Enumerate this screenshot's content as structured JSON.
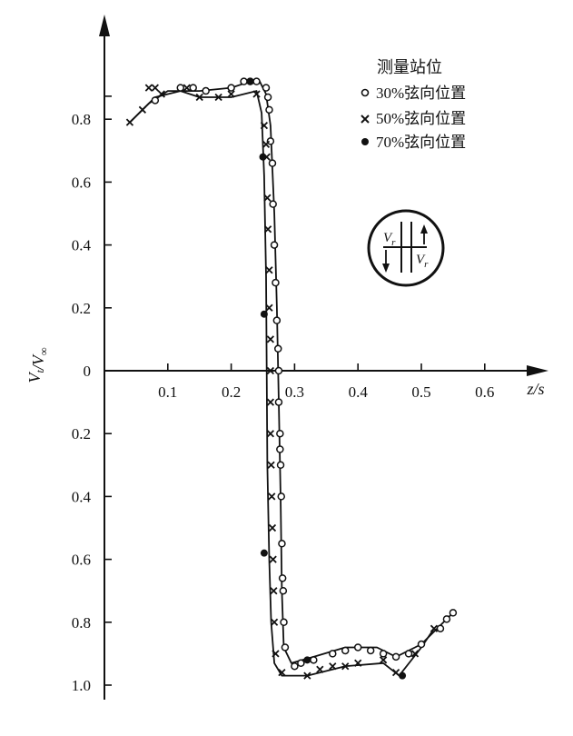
{
  "chart_data": {
    "type": "scatter",
    "title": "",
    "xlabel": "z/s",
    "ylabel": "V_t/V_∞",
    "xlim": [
      0,
      0.6
    ],
    "ylim": [
      -1.0,
      0.85
    ],
    "x_ticks": [
      0.1,
      0.2,
      0.3,
      0.4,
      0.5,
      0.6
    ],
    "x_tick_labels": [
      "0.1",
      "0.2",
      "0.3",
      "0.4",
      "0.5",
      "0.6"
    ],
    "y_ticks": [
      0.8,
      0.6,
      0.4,
      0.2,
      0,
      -0.2,
      -0.4,
      -0.6,
      -0.8,
      -1.0
    ],
    "y_tick_labels": [
      "0.8",
      "0.6",
      "0.4",
      "0.2",
      "0",
      "0.2",
      "0.4",
      "0.6",
      "0.8",
      "1.0"
    ],
    "grid": false,
    "legend_title": "测量站位",
    "legend_position": "top-right",
    "inset_labels": [
      "V_r",
      "V_r"
    ],
    "series": [
      {
        "name": "30%弦向位置",
        "marker": "open-circle",
        "points": [
          [
            0.08,
            0.86
          ],
          [
            0.12,
            0.9
          ],
          [
            0.14,
            0.9
          ],
          [
            0.16,
            0.89
          ],
          [
            0.2,
            0.9
          ],
          [
            0.22,
            0.92
          ],
          [
            0.23,
            0.92
          ],
          [
            0.24,
            0.92
          ],
          [
            0.255,
            0.9
          ],
          [
            0.258,
            0.87
          ],
          [
            0.26,
            0.83
          ],
          [
            0.262,
            0.73
          ],
          [
            0.265,
            0.66
          ],
          [
            0.266,
            0.53
          ],
          [
            0.268,
            0.4
          ],
          [
            0.27,
            0.28
          ],
          [
            0.272,
            0.16
          ],
          [
            0.274,
            0.07
          ],
          [
            0.275,
            0.0
          ],
          [
            0.275,
            -0.1
          ],
          [
            0.277,
            -0.2
          ],
          [
            0.277,
            -0.25
          ],
          [
            0.278,
            -0.3
          ],
          [
            0.279,
            -0.4
          ],
          [
            0.28,
            -0.55
          ],
          [
            0.281,
            -0.66
          ],
          [
            0.282,
            -0.7
          ],
          [
            0.283,
            -0.8
          ],
          [
            0.285,
            -0.88
          ],
          [
            0.3,
            -0.94
          ],
          [
            0.31,
            -0.93
          ],
          [
            0.33,
            -0.92
          ],
          [
            0.36,
            -0.9
          ],
          [
            0.38,
            -0.89
          ],
          [
            0.4,
            -0.88
          ],
          [
            0.42,
            -0.89
          ],
          [
            0.44,
            -0.9
          ],
          [
            0.46,
            -0.91
          ],
          [
            0.48,
            -0.9
          ],
          [
            0.5,
            -0.87
          ],
          [
            0.53,
            -0.82
          ],
          [
            0.54,
            -0.79
          ],
          [
            0.55,
            -0.77
          ]
        ]
      },
      {
        "name": "50%弦向位置",
        "marker": "cross",
        "points": [
          [
            0.04,
            0.79
          ],
          [
            0.06,
            0.83
          ],
          [
            0.07,
            0.9
          ],
          [
            0.08,
            0.9
          ],
          [
            0.09,
            0.88
          ],
          [
            0.13,
            0.9
          ],
          [
            0.15,
            0.87
          ],
          [
            0.18,
            0.87
          ],
          [
            0.2,
            0.88
          ],
          [
            0.24,
            0.88
          ],
          [
            0.252,
            0.78
          ],
          [
            0.255,
            0.72
          ],
          [
            0.256,
            0.68
          ],
          [
            0.257,
            0.55
          ],
          [
            0.258,
            0.45
          ],
          [
            0.26,
            0.32
          ],
          [
            0.26,
            0.2
          ],
          [
            0.262,
            0.1
          ],
          [
            0.262,
            0.0
          ],
          [
            0.262,
            -0.1
          ],
          [
            0.262,
            -0.2
          ],
          [
            0.263,
            -0.3
          ],
          [
            0.264,
            -0.4
          ],
          [
            0.265,
            -0.5
          ],
          [
            0.266,
            -0.6
          ],
          [
            0.267,
            -0.7
          ],
          [
            0.268,
            -0.8
          ],
          [
            0.27,
            -0.9
          ],
          [
            0.28,
            -0.96
          ],
          [
            0.32,
            -0.97
          ],
          [
            0.34,
            -0.95
          ],
          [
            0.36,
            -0.94
          ],
          [
            0.38,
            -0.94
          ],
          [
            0.4,
            -0.93
          ],
          [
            0.44,
            -0.92
          ],
          [
            0.46,
            -0.96
          ],
          [
            0.49,
            -0.9
          ],
          [
            0.52,
            -0.82
          ]
        ]
      },
      {
        "name": "70%弦向位置",
        "marker": "filled-circle",
        "points": [
          [
            0.23,
            0.92
          ],
          [
            0.25,
            0.68
          ],
          [
            0.252,
            0.18
          ],
          [
            0.252,
            -0.58
          ],
          [
            0.32,
            -0.92
          ],
          [
            0.47,
            -0.97
          ]
        ]
      }
    ],
    "curves": [
      [
        [
          0.04,
          0.79
        ],
        [
          0.07,
          0.85
        ],
        [
          0.1,
          0.89
        ],
        [
          0.15,
          0.89
        ],
        [
          0.2,
          0.9
        ],
        [
          0.23,
          0.92
        ],
        [
          0.245,
          0.92
        ],
        [
          0.255,
          0.88
        ],
        [
          0.262,
          0.78
        ],
        [
          0.268,
          0.5
        ],
        [
          0.272,
          0.2
        ],
        [
          0.275,
          -0.1
        ],
        [
          0.278,
          -0.4
        ],
        [
          0.28,
          -0.7
        ],
        [
          0.283,
          -0.88
        ],
        [
          0.295,
          -0.93
        ],
        [
          0.33,
          -0.91
        ],
        [
          0.38,
          -0.88
        ],
        [
          0.43,
          -0.88
        ],
        [
          0.46,
          -0.91
        ],
        [
          0.5,
          -0.87
        ],
        [
          0.55,
          -0.77
        ]
      ],
      [
        [
          0.04,
          0.79
        ],
        [
          0.08,
          0.87
        ],
        [
          0.12,
          0.89
        ],
        [
          0.15,
          0.87
        ],
        [
          0.2,
          0.87
        ],
        [
          0.24,
          0.89
        ],
        [
          0.248,
          0.82
        ],
        [
          0.252,
          0.62
        ],
        [
          0.255,
          0.3
        ],
        [
          0.256,
          0.0
        ],
        [
          0.257,
          -0.3
        ],
        [
          0.26,
          -0.6
        ],
        [
          0.263,
          -0.8
        ],
        [
          0.268,
          -0.93
        ],
        [
          0.28,
          -0.97
        ],
        [
          0.32,
          -0.97
        ],
        [
          0.38,
          -0.94
        ],
        [
          0.44,
          -0.93
        ],
        [
          0.465,
          -0.97
        ],
        [
          0.5,
          -0.88
        ],
        [
          0.52,
          -0.82
        ]
      ]
    ]
  }
}
